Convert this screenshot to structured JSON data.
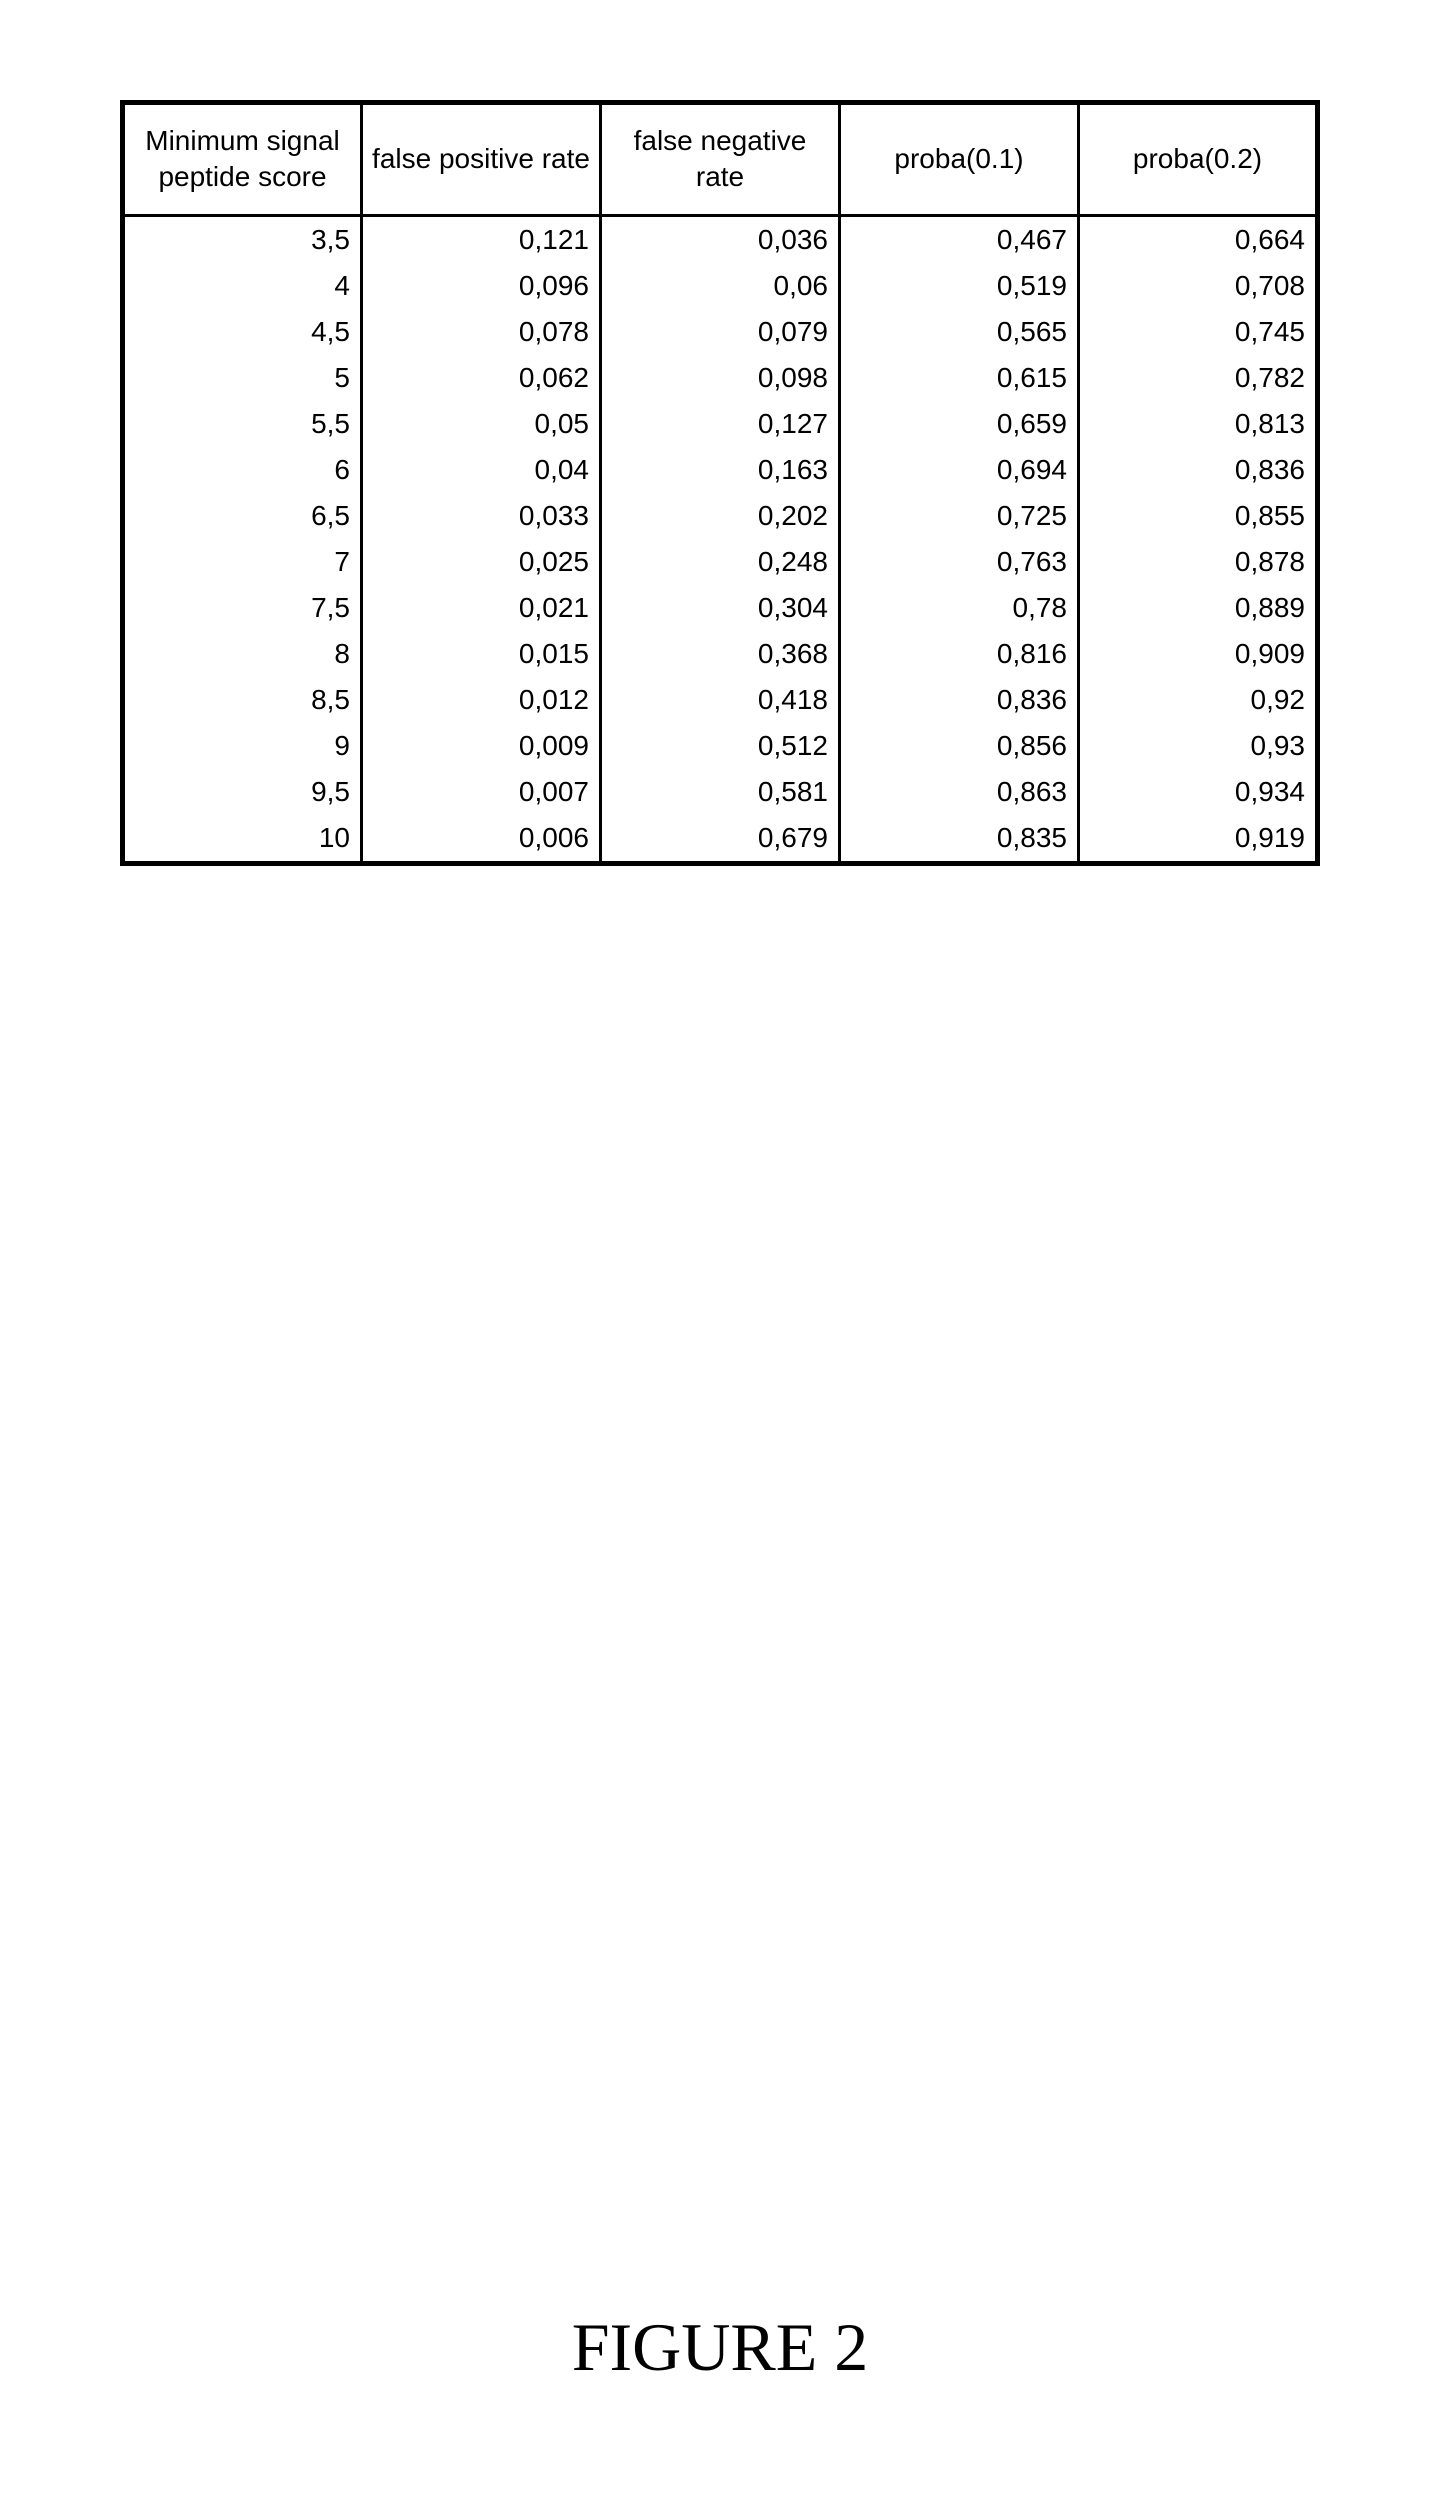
{
  "table": {
    "type": "table",
    "columns": [
      "Minimum signal peptide score",
      "false positive rate",
      "false negative rate",
      "proba(0.1)",
      "proba(0.2)"
    ],
    "rows": [
      [
        "3,5",
        "0,121",
        "0,036",
        "0,467",
        "0,664"
      ],
      [
        "4",
        "0,096",
        "0,06",
        "0,519",
        "0,708"
      ],
      [
        "4,5",
        "0,078",
        "0,079",
        "0,565",
        "0,745"
      ],
      [
        "5",
        "0,062",
        "0,098",
        "0,615",
        "0,782"
      ],
      [
        "5,5",
        "0,05",
        "0,127",
        "0,659",
        "0,813"
      ],
      [
        "6",
        "0,04",
        "0,163",
        "0,694",
        "0,836"
      ],
      [
        "6,5",
        "0,033",
        "0,202",
        "0,725",
        "0,855"
      ],
      [
        "7",
        "0,025",
        "0,248",
        "0,763",
        "0,878"
      ],
      [
        "7,5",
        "0,021",
        "0,304",
        "0,78",
        "0,889"
      ],
      [
        "8",
        "0,015",
        "0,368",
        "0,816",
        "0,909"
      ],
      [
        "8,5",
        "0,012",
        "0,418",
        "0,836",
        "0,92"
      ],
      [
        "9",
        "0,009",
        "0,512",
        "0,856",
        "0,93"
      ],
      [
        "9,5",
        "0,007",
        "0,581",
        "0,863",
        "0,934"
      ],
      [
        "10",
        "0,006",
        "0,679",
        "0,835",
        "0,919"
      ]
    ],
    "header_fontsize": 28,
    "cell_fontsize": 28,
    "border_color": "#000000",
    "outer_border_width": 5,
    "inner_border_width": 3,
    "background_color": "#ffffff",
    "text_color": "#000000",
    "text_align_header": "center",
    "text_align_cells": "right"
  },
  "caption": {
    "text": "FIGURE 2",
    "font_family": "Times New Roman",
    "fontsize": 68,
    "color": "#000000"
  }
}
